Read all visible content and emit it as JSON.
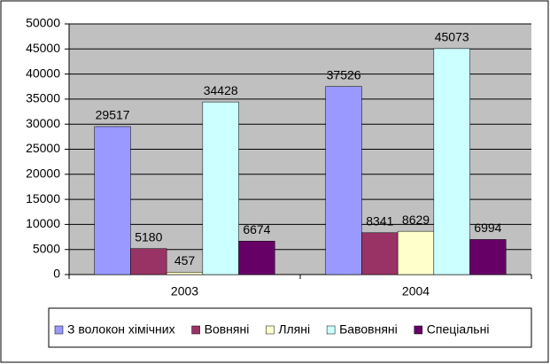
{
  "chart_data": {
    "type": "bar",
    "categories": [
      "2003",
      "2004"
    ],
    "series": [
      {
        "name": "З волокон хімічних",
        "color": "#9999ff",
        "values": [
          29517,
          37526
        ]
      },
      {
        "name": "Вовняні",
        "color": "#993366",
        "values": [
          5180,
          8341
        ]
      },
      {
        "name": "Лляні",
        "color": "#ffffcc",
        "values": [
          457,
          8629
        ]
      },
      {
        "name": "Бавовняні",
        "color": "#ccffff",
        "values": [
          34428,
          45073
        ]
      },
      {
        "name": "Спеціальні",
        "color": "#660066",
        "values": [
          6674,
          6994
        ]
      }
    ],
    "ylim": [
      0,
      50000
    ],
    "yticks": [
      0,
      5000,
      10000,
      15000,
      20000,
      25000,
      30000,
      35000,
      40000,
      45000,
      50000
    ],
    "grid": true,
    "legend": "bottom"
  }
}
